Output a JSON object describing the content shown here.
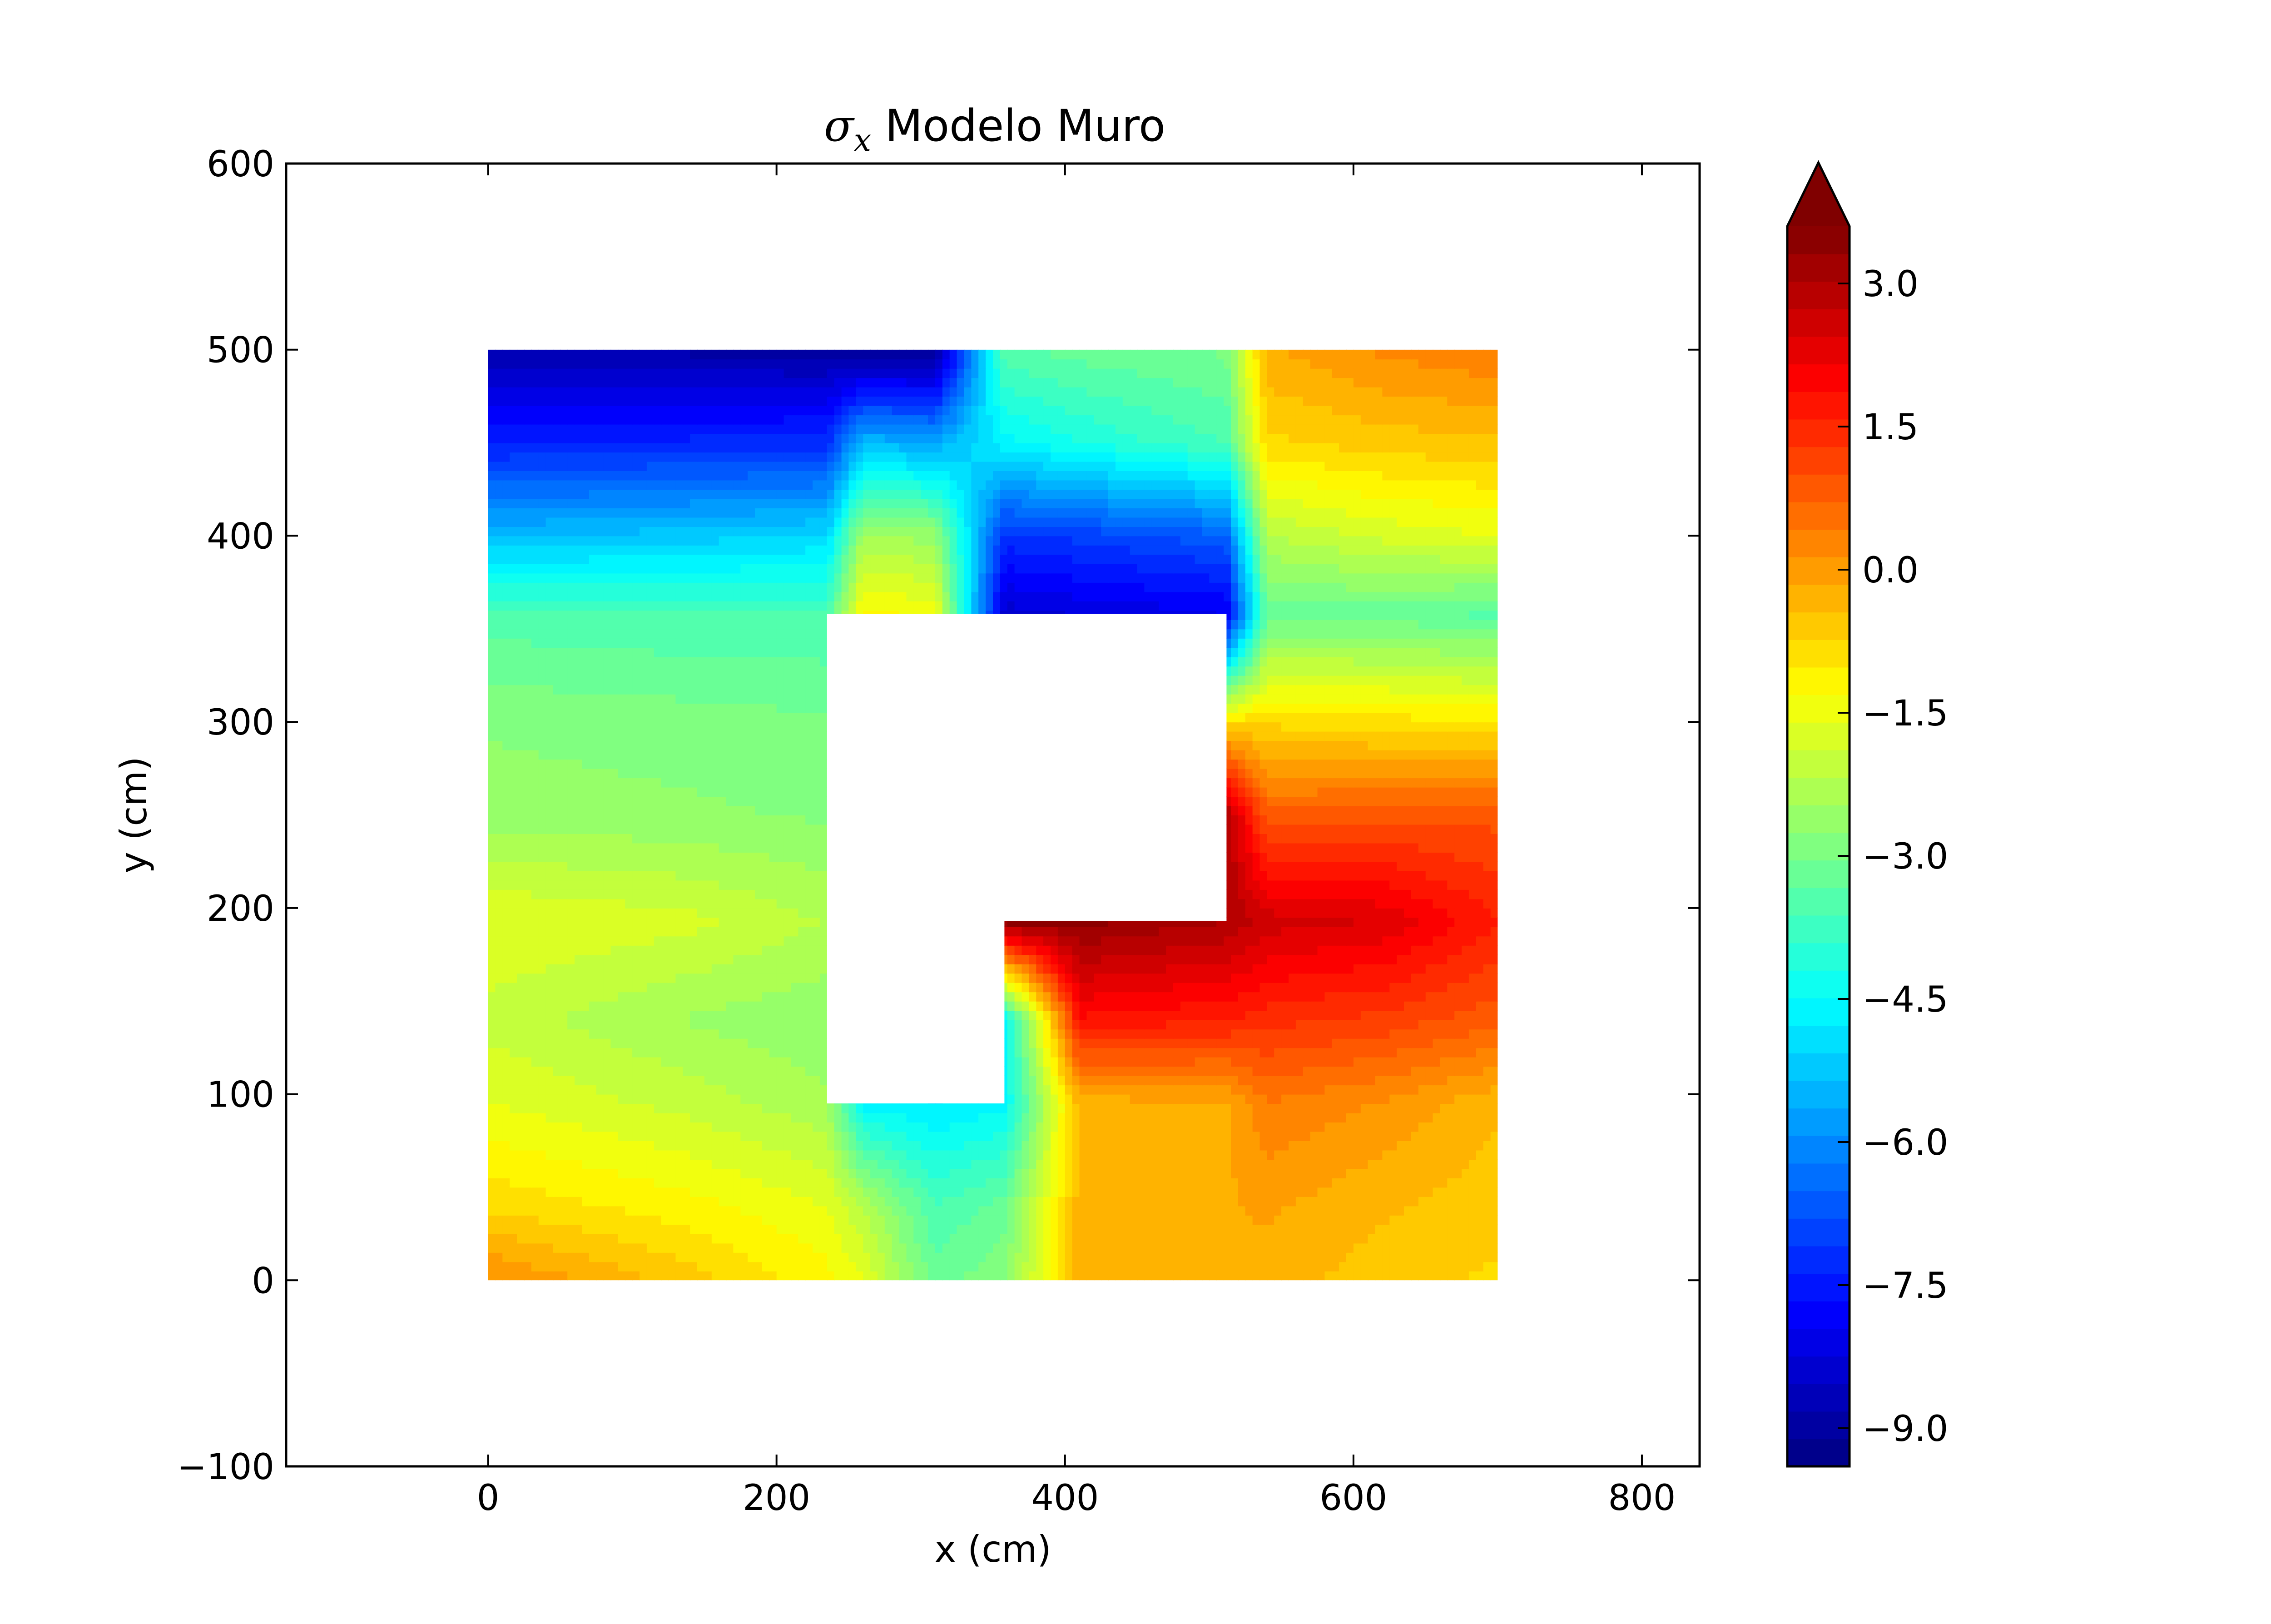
{
  "chart_data": {
    "type": "heatmap",
    "plot_kind": "filled-contour",
    "title_symbol": "σ",
    "title_subscript": "x",
    "title_text": "Modelo Muro",
    "xlabel": "x (cm)",
    "ylabel": "y (cm)",
    "xlim": [
      -140,
      840
    ],
    "ylim": [
      -100,
      600
    ],
    "x_ticks": [
      0,
      200,
      400,
      600,
      800
    ],
    "y_ticks": [
      -100,
      0,
      100,
      200,
      300,
      400,
      500,
      600
    ],
    "x_tick_labels": [
      "0",
      "200",
      "400",
      "600",
      "800"
    ],
    "y_tick_labels": [
      "−100",
      "0",
      "100",
      "200",
      "300",
      "400",
      "500",
      "600"
    ],
    "colorbar": {
      "colormap": "jet",
      "min": -9.4,
      "max": 3.6,
      "levels": 45,
      "extend": "max",
      "ticks": [
        -9.0,
        -7.5,
        -6.0,
        -4.5,
        -3.0,
        -1.5,
        0.0,
        1.5,
        3.0
      ],
      "tick_labels": [
        "−9.0",
        "−7.5",
        "−6.0",
        "−4.5",
        "−3.0",
        "−1.5",
        "0.0",
        "1.5",
        "3.0"
      ]
    },
    "domain": {
      "outline": [
        [
          0,
          0
        ],
        [
          700,
          0
        ],
        [
          700,
          500
        ],
        [
          0,
          500
        ]
      ],
      "hole": [
        [
          235,
          95
        ],
        [
          358,
          95
        ],
        [
          358,
          193
        ],
        [
          512,
          193
        ],
        [
          512,
          358
        ],
        [
          235,
          358
        ]
      ]
    },
    "nodes_x": [
      0,
      140,
      235,
      260,
      310,
      358,
      410,
      512,
      540,
      620,
      700
    ],
    "nodes_y": [
      0,
      40,
      95,
      140,
      193,
      250,
      300,
      358,
      400,
      450,
      500
    ],
    "values": [
      [
        0.2,
        -0.6,
        -1.2,
        -1.6,
        -3.2,
        -2.8,
        -0.3,
        -0.2,
        -0.3,
        -0.6,
        -0.8
      ],
      [
        -0.8,
        -1.2,
        -1.6,
        -2.2,
        -3.6,
        -3.2,
        -0.3,
        -0.2,
        -0.1,
        -0.4,
        -0.6
      ],
      [
        -1.6,
        -2.0,
        -2.4,
        -4.6,
        -4.8,
        -4.6,
        -0.3,
        -0.2,
        0.4,
        0.1,
        -0.4
      ],
      [
        -2.0,
        -2.5,
        -2.7,
        null,
        null,
        null,
        1.8,
        1.6,
        1.4,
        1.2,
        0.8
      ],
      [
        -1.6,
        -1.8,
        -2.2,
        null,
        null,
        null,
        3.4,
        3.0,
        2.6,
        2.4,
        1.6
      ],
      [
        -2.6,
        -2.7,
        -2.8,
        null,
        null,
        null,
        null,
        null,
        0.8,
        0.9,
        0.9
      ],
      [
        -2.8,
        -2.9,
        -3.0,
        null,
        null,
        null,
        null,
        null,
        -0.8,
        -0.9,
        -1.0
      ],
      [
        -3.5,
        -3.6,
        -3.6,
        -1.2,
        -1.4,
        -8.4,
        -8.2,
        -8.0,
        -3.2,
        -3.2,
        -3.4
      ],
      [
        -5.4,
        -5.2,
        -5.0,
        -2.4,
        -2.6,
        -7.2,
        -7.0,
        -6.6,
        -2.2,
        -1.8,
        -1.6
      ],
      [
        -7.4,
        -7.3,
        -7.2,
        -5.4,
        -5.6,
        -4.6,
        -4.2,
        -3.6,
        -0.8,
        -0.6,
        -0.5
      ],
      [
        -8.8,
        -8.9,
        -9.0,
        -9.2,
        -9.3,
        -3.4,
        -3.2,
        -3.0,
        -0.2,
        0.2,
        0.4
      ]
    ]
  }
}
